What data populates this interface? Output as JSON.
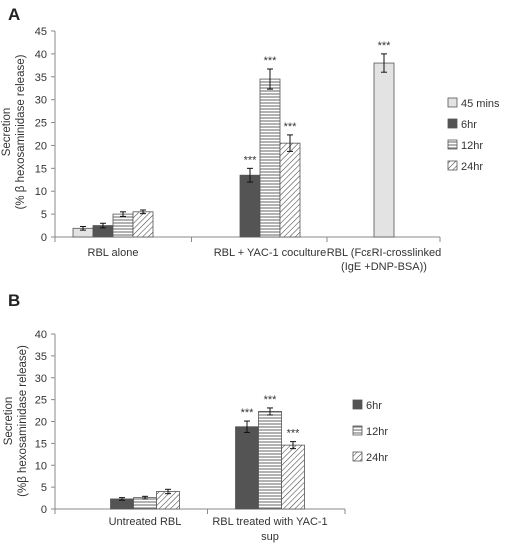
{
  "panel_labels": [
    "A",
    "B"
  ],
  "colors": {
    "45 mins": "#e3e3e3",
    "6hr": "#545454",
    "12hr": "#ffffff",
    "24hr": "#ffffff",
    "axis": "#8a8a8a",
    "text": "#333333",
    "bar_edge": "#555555"
  },
  "chart_data": [
    {
      "type": "bar",
      "panel": "A",
      "ylabel_lines": [
        "Secretion",
        "(% β hexosaminidase release)"
      ],
      "ylim": [
        0,
        45
      ],
      "yticks": [
        "0",
        "5",
        "10",
        "15",
        "20",
        "25",
        "30",
        "35",
        "40",
        "45"
      ],
      "grid": false,
      "legend_position": "right",
      "category_label_lines": [
        [
          "RBL alone"
        ],
        [
          "RBL + YAC-1 coculture"
        ],
        [
          "RBL (FcεRI-crosslinked",
          "(IgE +DNP-BSA))"
        ]
      ],
      "legend": [
        "45 mins",
        "6hr",
        "12hr",
        "24hr"
      ],
      "groups": [
        {
          "bars": [
            {
              "series": "45 mins",
              "value": 1.9,
              "error": 0.4,
              "sig": ""
            },
            {
              "series": "6hr",
              "value": 2.5,
              "error": 0.5,
              "sig": ""
            },
            {
              "series": "12hr",
              "value": 5.0,
              "error": 0.5,
              "sig": ""
            },
            {
              "series": "24hr",
              "value": 5.5,
              "error": 0.4,
              "sig": ""
            }
          ]
        },
        {
          "bars": [
            {
              "series": "6hr",
              "value": 13.5,
              "error": 1.5,
              "sig": "***"
            },
            {
              "series": "12hr",
              "value": 34.5,
              "error": 2.2,
              "sig": "***"
            },
            {
              "series": "24hr",
              "value": 20.5,
              "error": 1.8,
              "sig": "***"
            }
          ]
        },
        {
          "bars": [
            {
              "series": "45 mins",
              "value": 38.0,
              "error": 2.0,
              "sig": "***"
            }
          ]
        }
      ]
    },
    {
      "type": "bar",
      "panel": "B",
      "ylabel_lines": [
        "Secretion",
        "(%β hexosaminidase release)"
      ],
      "ylim": [
        0,
        40
      ],
      "yticks": [
        "0",
        "5",
        "10",
        "15",
        "20",
        "25",
        "30",
        "35",
        "40"
      ],
      "grid": false,
      "legend_position": "right",
      "category_label_lines": [
        [
          "Untreated RBL"
        ],
        [
          "RBL treated with YAC-1",
          "sup"
        ]
      ],
      "legend": [
        "6hr",
        "12hr",
        "24hr"
      ],
      "groups": [
        {
          "bars": [
            {
              "series": "6hr",
              "value": 2.3,
              "error": 0.3,
              "sig": ""
            },
            {
              "series": "12hr",
              "value": 2.6,
              "error": 0.3,
              "sig": ""
            },
            {
              "series": "24hr",
              "value": 4.0,
              "error": 0.5,
              "sig": ""
            }
          ]
        },
        {
          "bars": [
            {
              "series": "6hr",
              "value": 18.8,
              "error": 1.3,
              "sig": "***"
            },
            {
              "series": "12hr",
              "value": 22.3,
              "error": 0.8,
              "sig": "***"
            },
            {
              "series": "24hr",
              "value": 14.6,
              "error": 0.8,
              "sig": "***"
            }
          ]
        }
      ]
    }
  ]
}
